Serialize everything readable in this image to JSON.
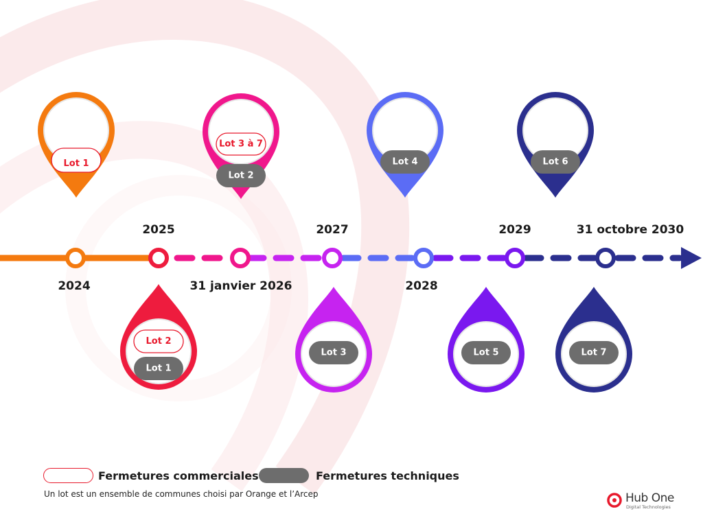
{
  "colors": {
    "commercial_red": "#e8192c",
    "pill_gray": "#6d6d6d",
    "orange": "#f47a0f",
    "red": "#ee1c3e",
    "magenta": "#f0178c",
    "violet": "#c623f0",
    "blue": "#5b6cf5",
    "purple": "#7a18ef",
    "navy": "#2b2f8e"
  },
  "timeline": {
    "years": {
      "y2024": "2024",
      "y2025": "2025",
      "y2026": "31 janvier 2026",
      "y2027": "2027",
      "y2028": "2028",
      "y2029": "2029",
      "y2030": "31 octobre 2030"
    }
  },
  "pins": {
    "p2024": {
      "commercial": "Lot 1"
    },
    "p2025": {
      "commercial": "Lot 2",
      "technical": "Lot 1"
    },
    "p2026": {
      "commercial": "Lot 3 à 7",
      "technical": "Lot 2"
    },
    "p2027": {
      "technical": "Lot 3"
    },
    "p2028": {
      "technical": "Lot 4"
    },
    "p2029": {
      "technical": "Lot 5"
    },
    "p2030a": {
      "technical": "Lot 6"
    },
    "p2030b": {
      "technical": "Lot 7"
    }
  },
  "legend": {
    "commercial": "Fermetures commerciales",
    "technical": "Fermetures techniques"
  },
  "note": "Un lot  est un ensemble de communes choisi par Orange et l’Arcep",
  "logo": {
    "name": "Hub One",
    "tagline": "Digital Technologies"
  }
}
